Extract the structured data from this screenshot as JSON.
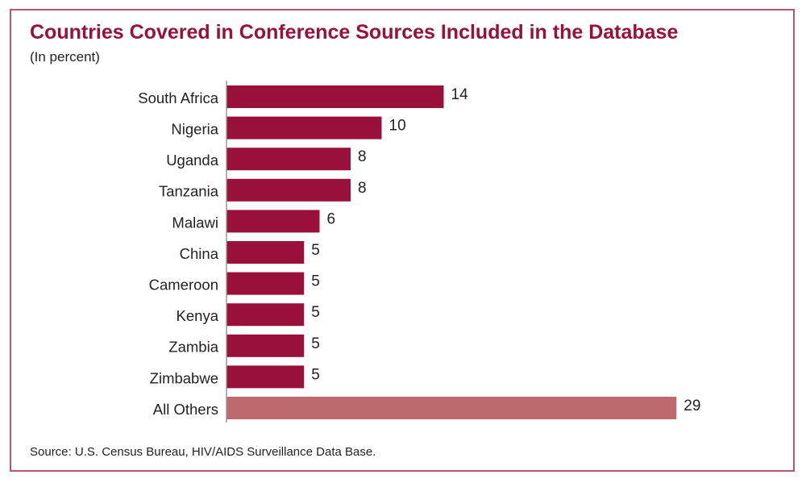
{
  "title": "Countries Covered in Conference Sources Included in the Database",
  "subtitle": "(In percent)",
  "source": "Source: U.S. Census Bureau, HIV/AIDS Surveillance Data Base.",
  "colors": {
    "primary_bar": "#99103a",
    "others_bar": "#bd6a6f",
    "frame": "#b5566a",
    "title": "#99103a"
  },
  "chart_data": {
    "type": "bar",
    "orientation": "horizontal",
    "categories": [
      "South Africa",
      "Nigeria",
      "Uganda",
      "Tanzania",
      "Malawi",
      "China",
      "Cameroon",
      "Kenya",
      "Zambia",
      "Zimbabwe",
      "All Others"
    ],
    "values": [
      14,
      10,
      8,
      8,
      6,
      5,
      5,
      5,
      5,
      5,
      29
    ],
    "title": "Countries Covered in Conference Sources Included in the Database",
    "unit": "(In percent)",
    "xlim": [
      0,
      30
    ],
    "grid": false,
    "legend": "none"
  }
}
